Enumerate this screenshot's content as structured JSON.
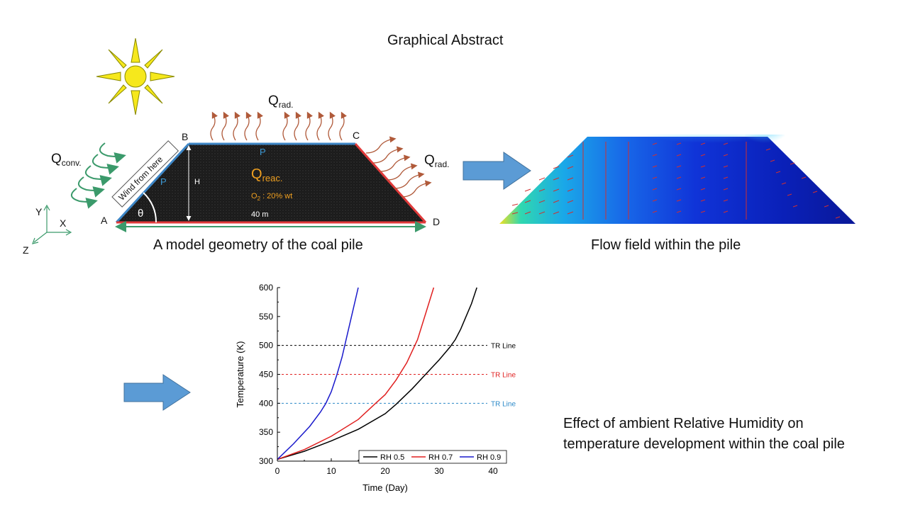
{
  "title": "Graphical Abstract",
  "geometry": {
    "caption": "A model geometry of the coal pile",
    "points": {
      "A": "A",
      "B": "B",
      "C": "C",
      "D": "D"
    },
    "height_label": "H",
    "width_label": "40 m",
    "angle_label": "θ",
    "pressure_label": "P",
    "q_reac_main": "Q",
    "q_reac_sub": "reac.",
    "o2_main": "O",
    "o2_sub": "2",
    "o2_rest": " : 20% wt",
    "q_rad_main": "Q",
    "q_rad_sub": "rad.",
    "q_conv_main": "Q",
    "q_conv_sub": "conv.",
    "wind_label": "Wind from here",
    "axes": {
      "x": "X",
      "y": "Y",
      "z": "Z"
    },
    "colors": {
      "fill": "#1b1b1b",
      "top": "#3d86c6",
      "side": "#e03a3a",
      "base": "#3b9a6b",
      "label": "#f0a020"
    }
  },
  "flow": {
    "caption": "Flow field within the pile"
  },
  "effect_caption": {
    "line1": "Effect of ambient Relative Humidity on",
    "line2": "temperature development within the coal pile"
  },
  "chart_data": {
    "type": "line",
    "xlabel": "Time (Day)",
    "ylabel": "Temperature (K)",
    "xlim": [
      0,
      40
    ],
    "ylim": [
      300,
      600
    ],
    "xticks": [
      "0",
      "10",
      "20",
      "30",
      "40"
    ],
    "yticks": [
      "300",
      "350",
      "400",
      "450",
      "500",
      "550",
      "600"
    ],
    "legend_position": "bottom-right",
    "series": [
      {
        "name": "RH 0.5",
        "color": "#000000",
        "x": [
          0,
          5,
          10,
          15,
          20,
          22,
          25,
          28,
          30,
          32,
          33,
          34,
          35,
          36,
          37
        ],
        "y": [
          303,
          317,
          335,
          355,
          382,
          398,
          425,
          455,
          475,
          497,
          510,
          528,
          550,
          572,
          600
        ]
      },
      {
        "name": "RH 0.7",
        "color": "#e02020",
        "x": [
          0,
          5,
          10,
          15,
          18,
          20,
          22,
          24,
          26,
          27,
          28,
          29
        ],
        "y": [
          303,
          320,
          343,
          372,
          398,
          415,
          440,
          470,
          510,
          540,
          570,
          600
        ]
      },
      {
        "name": "RH 0.9",
        "color": "#1a1acc",
        "x": [
          0,
          3,
          6,
          8,
          9,
          10,
          11,
          12,
          13,
          14,
          15
        ],
        "y": [
          303,
          330,
          360,
          385,
          400,
          420,
          448,
          480,
          520,
          560,
          600
        ]
      }
    ],
    "reference_lines": [
      {
        "label": "TR Line",
        "y": 500,
        "color": "#000000"
      },
      {
        "label": "TR Line",
        "y": 450,
        "color": "#e02020"
      },
      {
        "label": "TR Line",
        "y": 400,
        "color": "#2a88c8"
      }
    ]
  }
}
